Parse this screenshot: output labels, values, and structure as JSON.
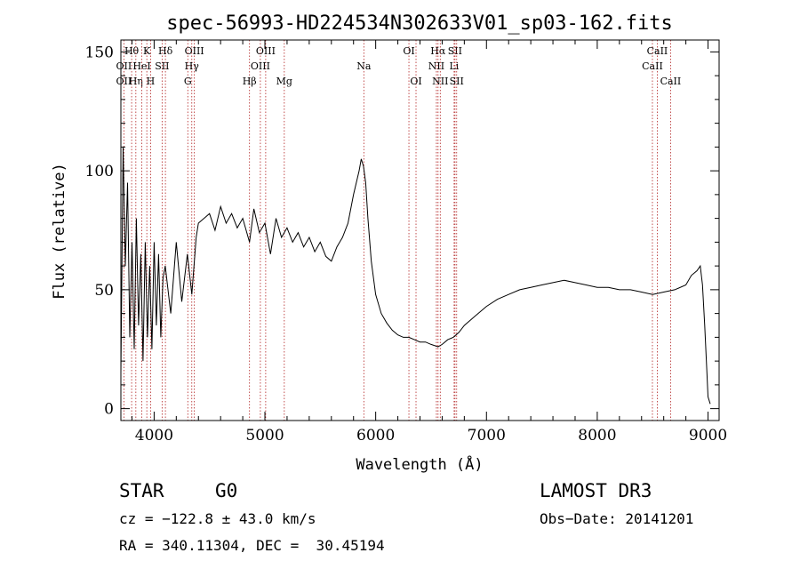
{
  "chart_data": {
    "type": "line",
    "title": "spec-56993-HD224534N302633V01_sp03-162.fits",
    "xlabel": "Wavelength (Å)",
    "ylabel": "Flux (relative)",
    "xlim": [
      3700,
      9100
    ],
    "ylim": [
      -5,
      155
    ],
    "xticks": [
      4000,
      5000,
      6000,
      7000,
      8000,
      9000
    ],
    "yticks": [
      0,
      50,
      100,
      150
    ],
    "grid": false,
    "series": [
      {
        "x": [
          3700,
          3720,
          3740,
          3760,
          3780,
          3800,
          3820,
          3840,
          3860,
          3880,
          3900,
          3920,
          3940,
          3960,
          3980,
          4000,
          4020,
          4040,
          4060,
          4080,
          4100,
          4150,
          4200,
          4250,
          4300,
          4340,
          4380,
          4400,
          4450,
          4500,
          4550,
          4600,
          4650,
          4700,
          4750,
          4800,
          4861,
          4900,
          4950,
          5000,
          5050,
          5100,
          5150,
          5200,
          5250,
          5300,
          5350,
          5400,
          5450,
          5500,
          5550,
          5600,
          5650,
          5700,
          5750,
          5800,
          5850,
          5870,
          5890,
          5910,
          5930,
          5960,
          6000,
          6050,
          6100,
          6150,
          6200,
          6250,
          6300,
          6350,
          6400,
          6450,
          6500,
          6563,
          6600,
          6650,
          6700,
          6750,
          6800,
          6850,
          6900,
          7000,
          7100,
          7200,
          7300,
          7400,
          7500,
          7600,
          7700,
          7800,
          7900,
          8000,
          8100,
          8200,
          8300,
          8400,
          8500,
          8600,
          8700,
          8800,
          8850,
          8900,
          8930,
          8950,
          8970,
          8990,
          9000,
          9020
        ],
        "y": [
          15,
          110,
          60,
          95,
          30,
          70,
          25,
          80,
          35,
          65,
          20,
          70,
          30,
          60,
          25,
          70,
          35,
          65,
          30,
          55,
          60,
          40,
          70,
          45,
          65,
          48,
          72,
          78,
          80,
          82,
          75,
          85,
          78,
          82,
          76,
          80,
          70,
          84,
          74,
          78,
          65,
          80,
          72,
          76,
          70,
          74,
          68,
          72,
          66,
          70,
          64,
          62,
          68,
          72,
          78,
          90,
          100,
          105,
          102,
          95,
          80,
          62,
          48,
          40,
          36,
          33,
          31,
          30,
          30,
          29,
          28,
          28,
          27,
          26,
          27,
          29,
          30,
          32,
          35,
          37,
          39,
          43,
          46,
          48,
          50,
          51,
          52,
          53,
          54,
          53,
          52,
          51,
          51,
          50,
          50,
          49,
          48,
          49,
          50,
          52,
          56,
          58,
          60,
          52,
          35,
          15,
          5,
          2
        ]
      }
    ],
    "spectral_lines": [
      {
        "label": "Hθ",
        "x": 3797,
        "row": 1
      },
      {
        "label": "OII",
        "x": 3727,
        "row": 2
      },
      {
        "label": "OII",
        "x": 3727,
        "row": 3
      },
      {
        "label": "Hη",
        "x": 3835,
        "row": 3
      },
      {
        "label": "K",
        "x": 3934,
        "row": 1
      },
      {
        "label": "HeI",
        "x": 3889,
        "row": 2
      },
      {
        "label": "SII",
        "x": 4072,
        "row": 2
      },
      {
        "label": "H",
        "x": 3968,
        "row": 3
      },
      {
        "label": "Hδ",
        "x": 4102,
        "row": 1
      },
      {
        "label": "OIII",
        "x": 4363,
        "row": 1
      },
      {
        "label": "Hγ",
        "x": 4340,
        "row": 2
      },
      {
        "label": "G",
        "x": 4304,
        "row": 3
      },
      {
        "label": "OIII",
        "x": 5007,
        "row": 1
      },
      {
        "label": "OIII",
        "x": 4959,
        "row": 2
      },
      {
        "label": "Hβ",
        "x": 4861,
        "row": 3
      },
      {
        "label": "Mg",
        "x": 5175,
        "row": 3
      },
      {
        "label": "Na",
        "x": 5893,
        "row": 2
      },
      {
        "label": "OI",
        "x": 6300,
        "row": 1
      },
      {
        "label": "OI",
        "x": 6364,
        "row": 3
      },
      {
        "label": "Hα",
        "x": 6563,
        "row": 1
      },
      {
        "label": "SII",
        "x": 6716,
        "row": 1
      },
      {
        "label": "NII",
        "x": 6548,
        "row": 2
      },
      {
        "label": "Li",
        "x": 6708,
        "row": 2
      },
      {
        "label": "NII",
        "x": 6583,
        "row": 3
      },
      {
        "label": "SII",
        "x": 6731,
        "row": 3
      },
      {
        "label": "CaII",
        "x": 8542,
        "row": 1
      },
      {
        "label": "CaII",
        "x": 8498,
        "row": 2
      },
      {
        "label": "CaII",
        "x": 8662,
        "row": 3
      }
    ]
  },
  "info": {
    "obj_class": "STAR",
    "obj_subclass": "G0",
    "survey": "LAMOST DR3",
    "cz": "cz = −122.8 ± 43.0 km/s",
    "obs_date": "Obs−Date: 20141201",
    "ra_dec": "RA = 340.11304, DEC =  30.45194"
  }
}
